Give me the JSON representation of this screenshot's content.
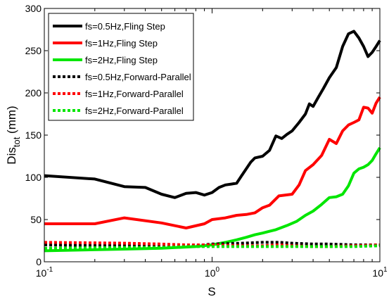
{
  "chart_data": {
    "type": "line",
    "title": "",
    "xlabel": "S",
    "ylabel_main": "Dis",
    "ylabel_sub": "tot",
    "ylabel_unit": " (mm)",
    "xscale": "log",
    "xlim": [
      0.1,
      10
    ],
    "ylim": [
      0,
      300
    ],
    "grid": false,
    "legend_position": "top-left",
    "x_ticks": [
      {
        "value": 0.1,
        "base": "10",
        "exp": "-1"
      },
      {
        "value": 1,
        "base": "10",
        "exp": "0"
      },
      {
        "value": 10,
        "base": "10",
        "exp": "1"
      }
    ],
    "y_ticks": [
      0,
      50,
      100,
      150,
      200,
      250,
      300
    ],
    "series": [
      {
        "name": "fs=0.5Hz,Fling Step",
        "color": "#000000",
        "style": "solid",
        "x": [
          0.1,
          0.2,
          0.3,
          0.4,
          0.5,
          0.6,
          0.7,
          0.8,
          0.9,
          1.0,
          1.1,
          1.2,
          1.3,
          1.4,
          1.5,
          1.7,
          1.8,
          2.0,
          2.2,
          2.4,
          2.6,
          2.8,
          3.0,
          3.3,
          3.6,
          3.8,
          4.0,
          4.3,
          4.6,
          5.0,
          5.5,
          6.0,
          6.5,
          7.0,
          7.5,
          8.0,
          8.5,
          9.0,
          9.5,
          10.0
        ],
        "y": [
          102,
          98,
          89,
          88,
          80,
          76,
          81,
          82,
          79,
          82,
          88,
          91,
          92,
          93,
          102,
          118,
          123,
          125,
          132,
          149,
          146,
          151,
          155,
          165,
          175,
          187,
          184,
          195,
          205,
          218,
          230,
          255,
          270,
          273,
          265,
          255,
          243,
          248,
          255,
          262
        ]
      },
      {
        "name": "fs=1Hz,Fling Step",
        "color": "#ff0000",
        "style": "solid",
        "x": [
          0.1,
          0.2,
          0.3,
          0.5,
          0.7,
          0.9,
          1.0,
          1.2,
          1.4,
          1.6,
          1.8,
          2.0,
          2.2,
          2.5,
          3.0,
          3.3,
          3.6,
          4.0,
          4.5,
          5.0,
          5.5,
          6.0,
          6.5,
          7.0,
          7.5,
          8.0,
          8.5,
          9.0,
          9.5,
          10.0
        ],
        "y": [
          45,
          45,
          52,
          46,
          40,
          45,
          50,
          52,
          55,
          56,
          58,
          64,
          67,
          78,
          80,
          91,
          108,
          115,
          126,
          145,
          140,
          155,
          162,
          165,
          168,
          183,
          182,
          176,
          188,
          195
        ]
      },
      {
        "name": "fs=2Hz,Fling Step",
        "color": "#00e600",
        "style": "solid",
        "x": [
          0.1,
          0.3,
          0.5,
          0.8,
          1.0,
          1.2,
          1.4,
          1.6,
          1.8,
          2.0,
          2.4,
          2.8,
          3.2,
          3.6,
          4.0,
          4.5,
          5.0,
          5.5,
          6.0,
          6.5,
          7.0,
          7.5,
          8.0,
          8.5,
          9.0,
          9.5,
          10.0
        ],
        "y": [
          13,
          15,
          16,
          18,
          20,
          23,
          26,
          29,
          32,
          34,
          38,
          43,
          48,
          55,
          60,
          68,
          76,
          77,
          80,
          90,
          105,
          110,
          112,
          115,
          120,
          128,
          135
        ]
      },
      {
        "name": "fs=0.5Hz,Forward-Parallel",
        "color": "#000000",
        "style": "dotted",
        "x": [
          0.1,
          0.3,
          0.5,
          0.7,
          1.0,
          1.5,
          2.0,
          2.5,
          3.0,
          4.0,
          5.0,
          7.0,
          10.0
        ],
        "y": [
          20,
          19,
          18,
          18,
          21,
          22,
          23,
          23,
          22,
          21,
          21,
          20,
          20
        ]
      },
      {
        "name": "fs=1Hz,Forward-Parallel",
        "color": "#ff0000",
        "style": "dotted",
        "x": [
          0.1,
          0.3,
          0.5,
          0.7,
          1.0,
          1.5,
          2.0,
          2.5,
          3.0,
          4.0,
          5.0,
          7.0,
          10.0
        ],
        "y": [
          23,
          22,
          21,
          20,
          20,
          19,
          19,
          20,
          19,
          18,
          18,
          19,
          20
        ]
      },
      {
        "name": "fs=2Hz,Forward-Parallel",
        "color": "#00e600",
        "style": "dotted",
        "x": [
          0.1,
          0.3,
          0.5,
          0.7,
          1.0,
          1.5,
          2.0,
          2.5,
          3.0,
          4.0,
          5.0,
          7.0,
          10.0
        ],
        "y": [
          16,
          17,
          17,
          18,
          18,
          18,
          18,
          18,
          18,
          18,
          18,
          18,
          19
        ]
      }
    ]
  }
}
